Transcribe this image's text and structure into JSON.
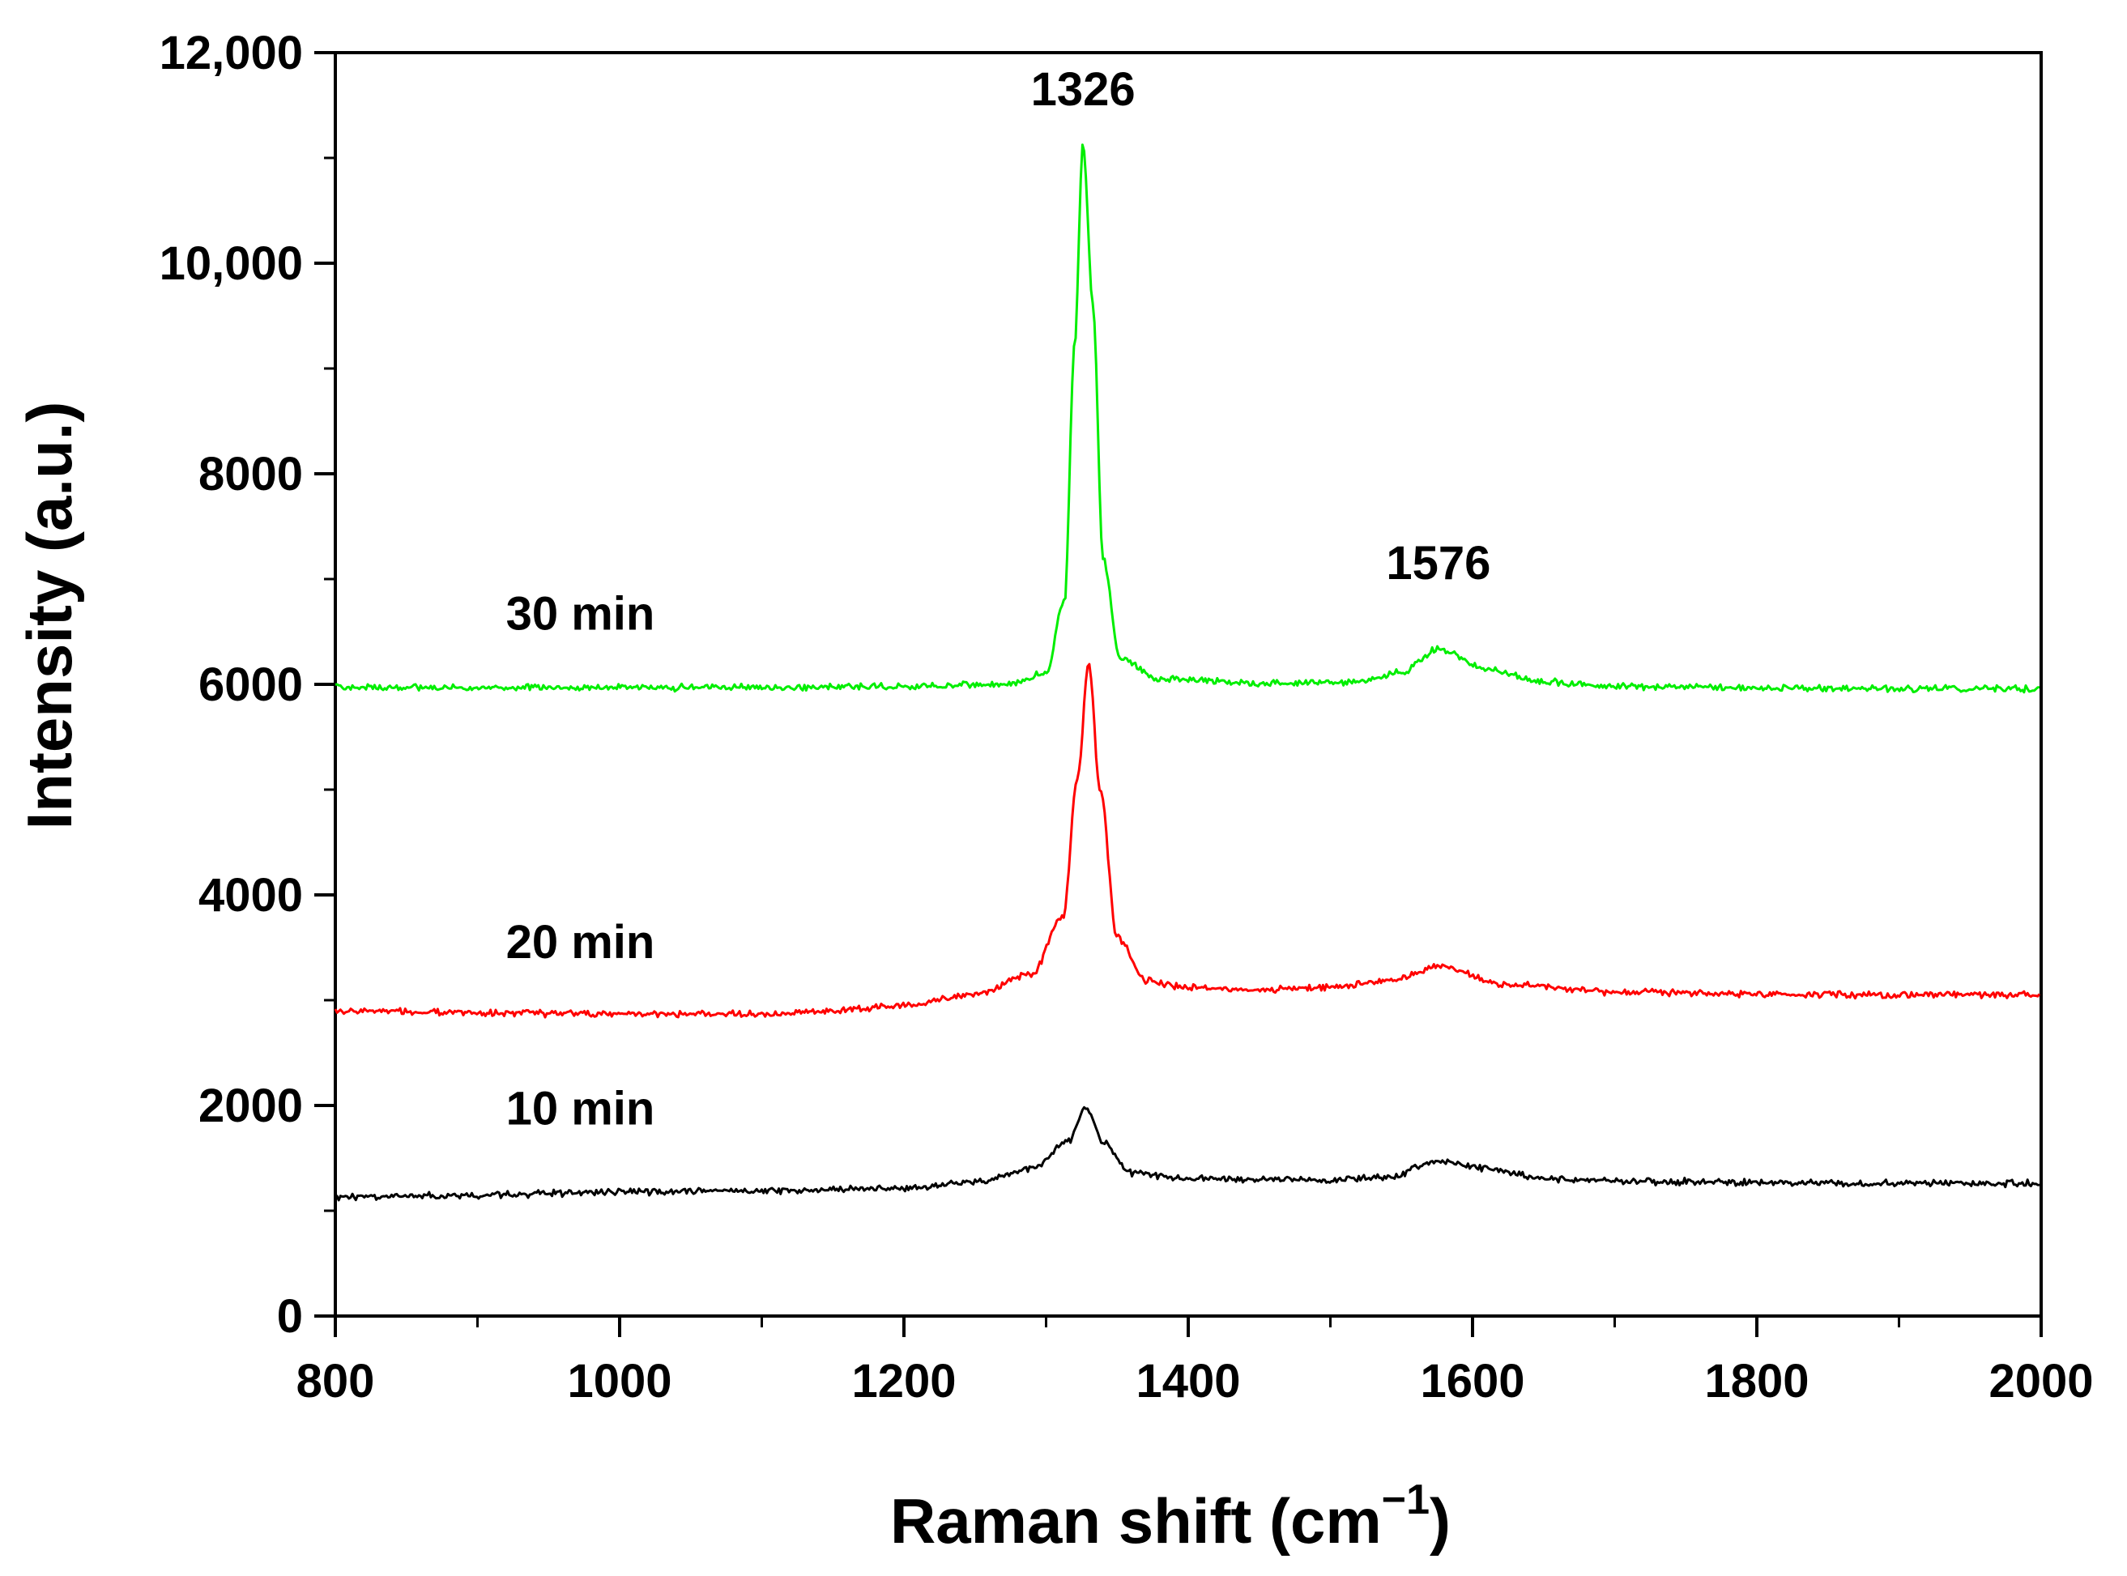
{
  "chart_data": {
    "type": "line",
    "title": "",
    "xlabel": "Raman shift (cm",
    "xlabel_sup": "−1",
    "xlabel_close": ")",
    "ylabel": "Intensity (a.u.)",
    "xlim": [
      800,
      2000
    ],
    "ylim": [
      0,
      12000
    ],
    "xticks": [
      {
        "value": 800,
        "label": "800"
      },
      {
        "value": 1000,
        "label": "1000"
      },
      {
        "value": 1200,
        "label": "1200"
      },
      {
        "value": 1400,
        "label": "1400"
      },
      {
        "value": 1600,
        "label": "1600"
      },
      {
        "value": 1800,
        "label": "1800"
      },
      {
        "value": 2000,
        "label": "2000"
      }
    ],
    "yticks": [
      {
        "value": 0,
        "label": "0"
      },
      {
        "value": 2000,
        "label": "2000"
      },
      {
        "value": 4000,
        "label": "4000"
      },
      {
        "value": 6000,
        "label": "6000"
      },
      {
        "value": 8000,
        "label": "8000"
      },
      {
        "value": 10000,
        "label": "10,000"
      },
      {
        "value": 12000,
        "label": "12,000"
      }
    ],
    "grid": false,
    "series": [
      {
        "name": "10 min",
        "color": "#000000",
        "points": [
          [
            800,
            1130
          ],
          [
            900,
            1150
          ],
          [
            1000,
            1180
          ],
          [
            1100,
            1190
          ],
          [
            1200,
            1210
          ],
          [
            1250,
            1270
          ],
          [
            1290,
            1400
          ],
          [
            1315,
            1650
          ],
          [
            1328,
            1980
          ],
          [
            1340,
            1650
          ],
          [
            1360,
            1360
          ],
          [
            1400,
            1300
          ],
          [
            1450,
            1300
          ],
          [
            1500,
            1290
          ],
          [
            1540,
            1320
          ],
          [
            1576,
            1470
          ],
          [
            1610,
            1400
          ],
          [
            1650,
            1300
          ],
          [
            1700,
            1280
          ],
          [
            1800,
            1270
          ],
          [
            1900,
            1260
          ],
          [
            2000,
            1260
          ]
        ]
      },
      {
        "name": "20 min",
        "color": "#ff0000",
        "points": [
          [
            800,
            2900
          ],
          [
            900,
            2880
          ],
          [
            1000,
            2870
          ],
          [
            1100,
            2870
          ],
          [
            1150,
            2900
          ],
          [
            1200,
            2950
          ],
          [
            1250,
            3050
          ],
          [
            1290,
            3250
          ],
          [
            1312,
            3800
          ],
          [
            1322,
            5100
          ],
          [
            1330,
            6200
          ],
          [
            1338,
            5000
          ],
          [
            1350,
            3600
          ],
          [
            1370,
            3180
          ],
          [
            1400,
            3120
          ],
          [
            1450,
            3100
          ],
          [
            1500,
            3120
          ],
          [
            1540,
            3180
          ],
          [
            1578,
            3330
          ],
          [
            1620,
            3150
          ],
          [
            1700,
            3080
          ],
          [
            1800,
            3060
          ],
          [
            1900,
            3050
          ],
          [
            2000,
            3050
          ]
        ]
      },
      {
        "name": "30 min",
        "color": "#00ee00",
        "points": [
          [
            800,
            5970
          ],
          [
            900,
            5970
          ],
          [
            1000,
            5970
          ],
          [
            1100,
            5970
          ],
          [
            1200,
            5980
          ],
          [
            1270,
            6000
          ],
          [
            1300,
            6100
          ],
          [
            1313,
            6800
          ],
          [
            1320,
            9200
          ],
          [
            1326,
            11150
          ],
          [
            1333,
            9600
          ],
          [
            1340,
            7200
          ],
          [
            1352,
            6250
          ],
          [
            1380,
            6050
          ],
          [
            1450,
            6010
          ],
          [
            1520,
            6020
          ],
          [
            1550,
            6120
          ],
          [
            1576,
            6330
          ],
          [
            1610,
            6150
          ],
          [
            1650,
            6020
          ],
          [
            1700,
            5980
          ],
          [
            1800,
            5970
          ],
          [
            1900,
            5960
          ],
          [
            2000,
            5960
          ]
        ]
      }
    ],
    "series_labels": [
      {
        "text": "10 min",
        "x": 920,
        "y": 1820
      },
      {
        "text": "20 min",
        "x": 920,
        "y": 3400
      },
      {
        "text": "30 min",
        "x": 920,
        "y": 6520
      }
    ],
    "annotations": [
      {
        "text": "1326",
        "x": 1326,
        "y": 11500
      },
      {
        "text": "1576",
        "x": 1576,
        "y": 7000
      }
    ]
  }
}
